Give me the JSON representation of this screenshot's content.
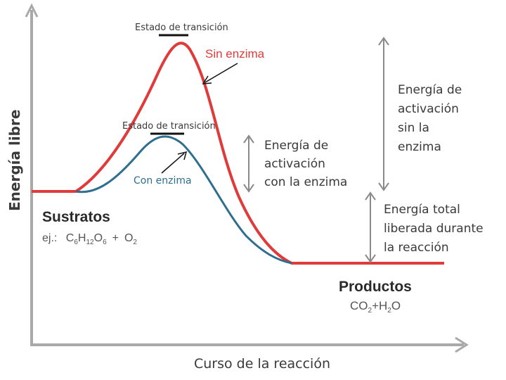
{
  "axes": {
    "y_label": "Energía libre",
    "x_label": "Curso de la reacción"
  },
  "curves": {
    "without_enzyme": {
      "label": "Sin enzima",
      "color": "#e03a3a"
    },
    "with_enzyme": {
      "label": "Con enzima",
      "color": "#2e6e8e"
    }
  },
  "transition_state_label_top": "Estado de transición",
  "transition_state_label_mid": "Estado de transición",
  "activation_with_enzyme": [
    "Energía de",
    "activación",
    "con la enzima"
  ],
  "activation_without_enzyme": [
    "Energía de",
    "activación",
    "sin la",
    "enzima"
  ],
  "energy_released": [
    "Energía total",
    "liberada durante",
    "la reacción"
  ],
  "substrates": {
    "title": "Sustratos",
    "prefix": "ej.:",
    "formula": {
      "c": "C",
      "c_sub": "6",
      "h": "H",
      "h_sub": "12",
      "o": "O",
      "o_sub": "6",
      "plus": "+",
      "o2": "O",
      "o2_sub": "2"
    }
  },
  "products": {
    "title": "Productos",
    "formula": {
      "co": "CO",
      "co_sub": "2",
      "plus": "+",
      "h": "H",
      "h_sub": "2",
      "o": "O"
    }
  },
  "colors": {
    "axis": "#a9a9a9",
    "arrow": "#8a8a8a",
    "text": "#3a3a3a"
  }
}
